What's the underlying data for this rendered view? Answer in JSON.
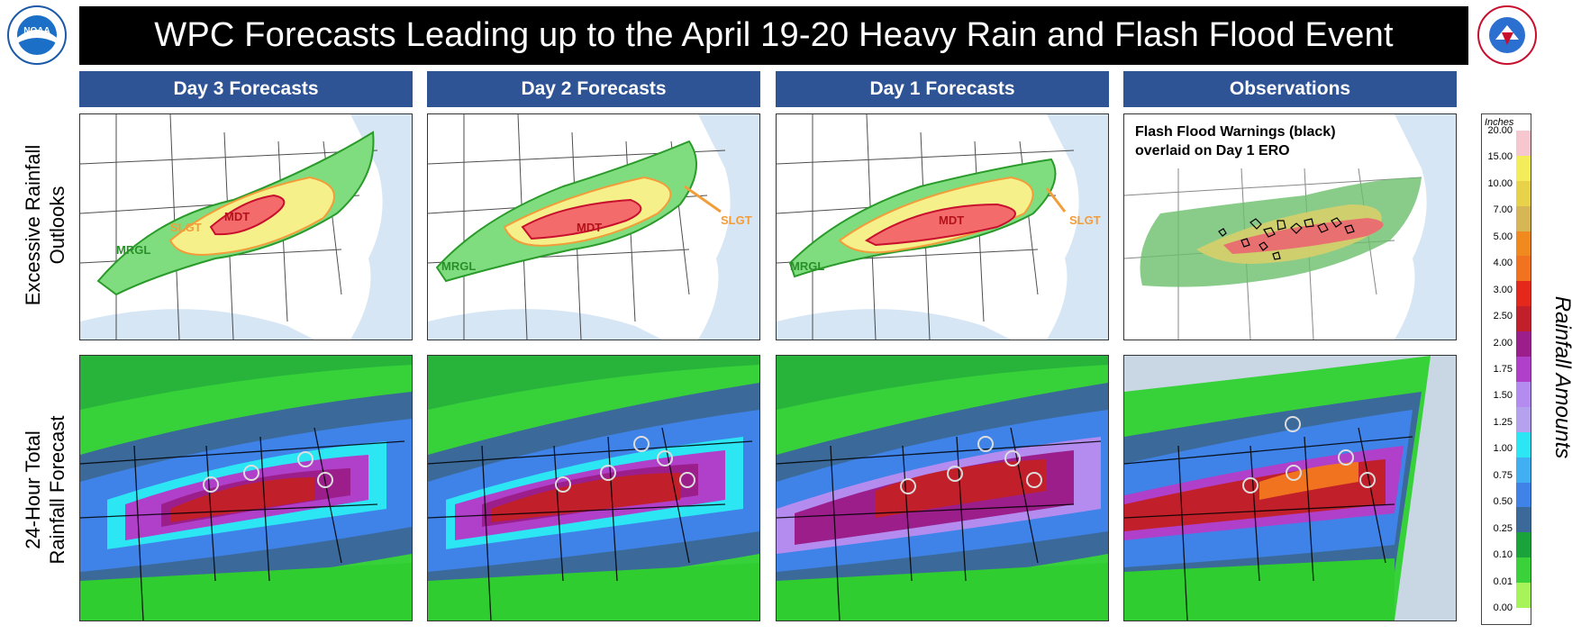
{
  "title": "WPC Forecasts Leading up to the April 19-20 Heavy Rain and Flash Flood Event",
  "logos": {
    "left": "NOAA",
    "right_ring_text": "NATIONAL WEATHER SERVICE"
  },
  "columns": [
    "Day 3 Forecasts",
    "Day 2 Forecasts",
    "Day 1 Forecasts",
    "Observations"
  ],
  "rows": {
    "ero": [
      "Excessive Rainfall",
      "Outlooks"
    ],
    "qpf": [
      "24-Hour Total",
      "Rainfall Forecast"
    ]
  },
  "ero_labels": {
    "mrgl": "MRGL",
    "slgt": "SLGT",
    "mdt": "MDT"
  },
  "observations_note": [
    "Flash Flood Warnings (black)",
    "overlaid on Day 1 ERO"
  ],
  "legend": {
    "unit": "Inches",
    "title": "Rainfall Amounts",
    "ticks": [
      "20.00",
      "15.00",
      "10.00",
      "7.00",
      "5.00",
      "4.00",
      "3.00",
      "2.50",
      "2.00",
      "1.75",
      "1.50",
      "1.25",
      "1.00",
      "0.75",
      "0.50",
      "0.25",
      "0.10",
      "0.01",
      "0.00"
    ],
    "colors": [
      "#f7c7d0",
      "#f4ec5a",
      "#e8d24a",
      "#d7b655",
      "#f08a1e",
      "#f2731f",
      "#e5281c",
      "#c1202a",
      "#9b1e8b",
      "#b03fc9",
      "#b48cf0",
      "#b5a2ee",
      "#2ce6f4",
      "#41b0f2",
      "#3f83e8",
      "#3b6a9a",
      "#1aa33a",
      "#3bd13a",
      "#a7f45a"
    ]
  },
  "colors": {
    "header_blue": "#2f5496",
    "mrgl": "#7fdd7f",
    "slgt": "#f5f08a",
    "mdt": "#f36b6b",
    "slgt_text": "#f39c3a",
    "mrgl_text": "#2a8f2a",
    "mdt_text": "#b3121a"
  }
}
